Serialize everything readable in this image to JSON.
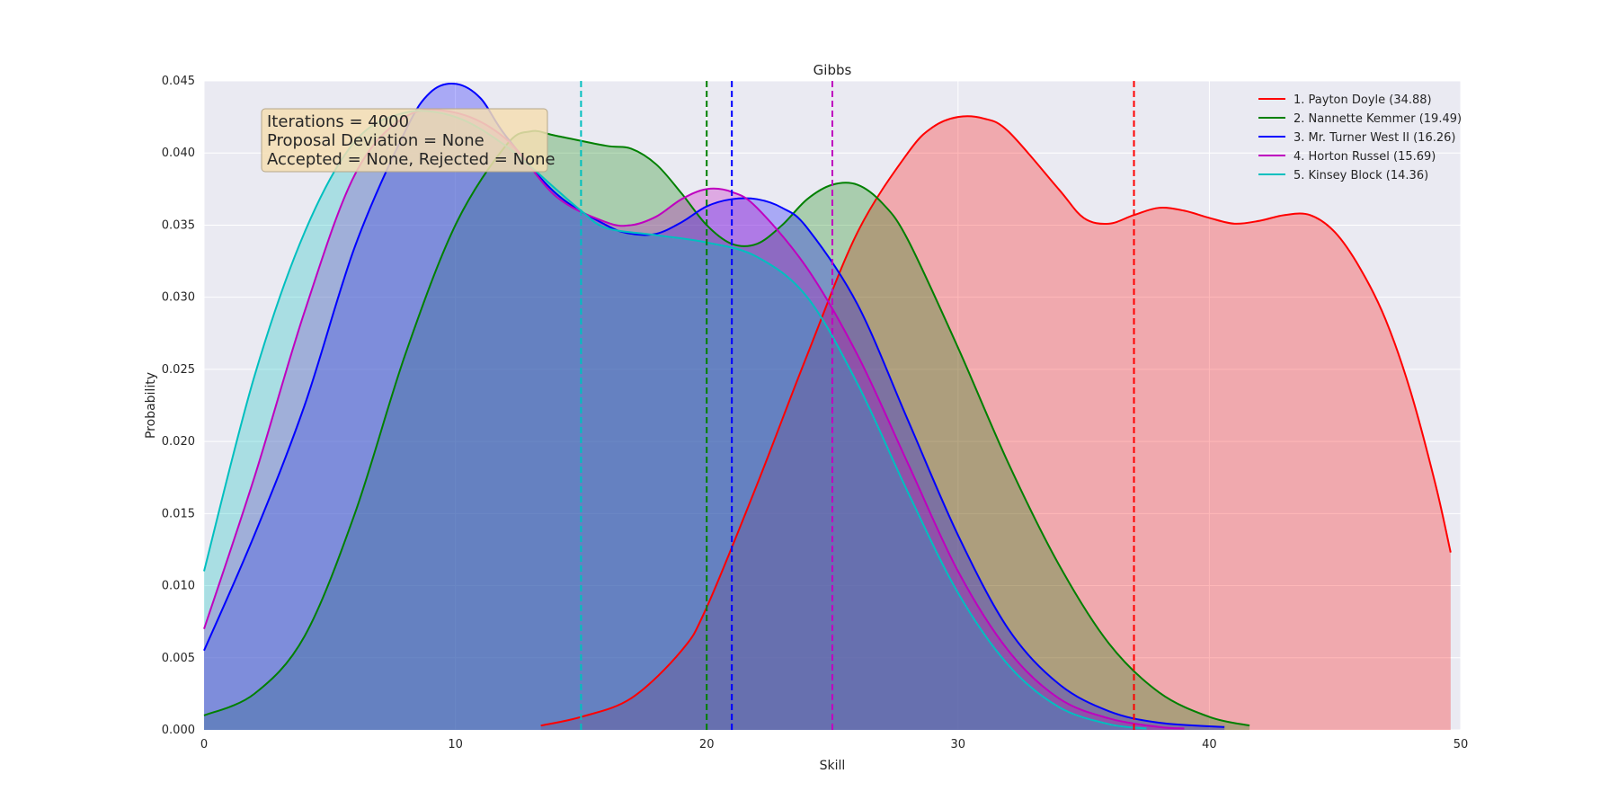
{
  "chart_data": {
    "type": "area",
    "title": "Gibbs",
    "xlabel": "Skill",
    "ylabel": "Probability",
    "xlim": [
      0,
      50
    ],
    "ylim": [
      0,
      0.045
    ],
    "xticks": [
      0,
      10,
      20,
      30,
      40,
      50
    ],
    "yticks": [
      "0.000",
      "0.005",
      "0.010",
      "0.015",
      "0.020",
      "0.025",
      "0.030",
      "0.035",
      "0.040",
      "0.045"
    ],
    "grid": true,
    "legend_position": "top-right",
    "series": [
      {
        "name": "1. Payton Doyle (34.88)",
        "color": "#ff0000",
        "mean": 37,
        "x": [
          13.4,
          15,
          17,
          19,
          20,
          22,
          24,
          26,
          28,
          29,
          30,
          31,
          32,
          34,
          35,
          36,
          37,
          38,
          39,
          40,
          41,
          42,
          43,
          44,
          45,
          46,
          47,
          48,
          49,
          49.6
        ],
        "y": [
          0.0003,
          0.0009,
          0.0022,
          0.0055,
          0.0085,
          0.017,
          0.026,
          0.0345,
          0.04,
          0.0418,
          0.0425,
          0.0424,
          0.0415,
          0.0375,
          0.0355,
          0.0351,
          0.0357,
          0.0362,
          0.036,
          0.0355,
          0.0351,
          0.0353,
          0.0357,
          0.0357,
          0.0345,
          0.032,
          0.0285,
          0.0235,
          0.017,
          0.0123
        ]
      },
      {
        "name": "2. Nannette Kemmer (19.49)",
        "color": "#008000",
        "mean": 20,
        "x": [
          0,
          2,
          4,
          6,
          8,
          10,
          12,
          13,
          14,
          16,
          17,
          18,
          19,
          20,
          21,
          22,
          23,
          24,
          25,
          26,
          27,
          28,
          30,
          32,
          34,
          36,
          38,
          40,
          41.6
        ],
        "y": [
          0.001,
          0.0025,
          0.0065,
          0.015,
          0.026,
          0.035,
          0.0405,
          0.0415,
          0.0412,
          0.0405,
          0.0403,
          0.0392,
          0.0372,
          0.035,
          0.0337,
          0.0337,
          0.035,
          0.0368,
          0.0378,
          0.0378,
          0.0365,
          0.034,
          0.0265,
          0.0185,
          0.0115,
          0.006,
          0.0026,
          0.0009,
          0.0003
        ]
      },
      {
        "name": "3. Mr. Turner West II (16.26)",
        "color": "#0000ff",
        "mean": 21,
        "x": [
          0,
          2,
          4,
          6,
          8,
          9,
          10,
          11,
          12,
          14,
          16,
          17,
          18,
          19,
          20,
          21,
          22,
          23,
          24,
          26,
          28,
          30,
          32,
          34,
          36,
          38,
          40.6
        ],
        "y": [
          0.0055,
          0.0135,
          0.0225,
          0.0335,
          0.0415,
          0.0442,
          0.0448,
          0.0438,
          0.0412,
          0.0372,
          0.035,
          0.0344,
          0.0344,
          0.0352,
          0.0363,
          0.0368,
          0.0368,
          0.0362,
          0.0348,
          0.0295,
          0.0215,
          0.0135,
          0.007,
          0.0032,
          0.0013,
          0.0005,
          0.0002
        ]
      },
      {
        "name": "4. Horton Russel (15.69)",
        "color": "#bf00bf",
        "mean": 25,
        "x": [
          0,
          2,
          4,
          6,
          8,
          10,
          12,
          14,
          16,
          17,
          18,
          19,
          20,
          21,
          22,
          24,
          26,
          28,
          30,
          32,
          34,
          36,
          38,
          39
        ],
        "y": [
          0.007,
          0.0175,
          0.029,
          0.0385,
          0.0425,
          0.0428,
          0.041,
          0.037,
          0.0352,
          0.035,
          0.0356,
          0.0368,
          0.0375,
          0.0373,
          0.0362,
          0.032,
          0.026,
          0.0185,
          0.011,
          0.0055,
          0.0022,
          0.0008,
          0.0002,
          0.0001
        ]
      },
      {
        "name": "5. Kinsey Block (14.36)",
        "color": "#00bfbf",
        "mean": 15,
        "x": [
          0,
          2,
          4,
          6,
          8,
          10,
          12,
          14,
          15,
          16,
          18,
          20,
          22,
          24,
          26,
          28,
          30,
          32,
          34,
          36,
          37.5
        ],
        "y": [
          0.011,
          0.0245,
          0.0345,
          0.0408,
          0.0428,
          0.0425,
          0.0405,
          0.0375,
          0.036,
          0.0348,
          0.0343,
          0.0338,
          0.0328,
          0.03,
          0.024,
          0.0165,
          0.0095,
          0.0045,
          0.0016,
          0.0004,
          0.0001
        ]
      }
    ]
  },
  "info_box": {
    "line1": "Iterations = 4000",
    "line2": "Proposal Deviation = None",
    "line3": "Accepted = None, Rejected = None"
  }
}
